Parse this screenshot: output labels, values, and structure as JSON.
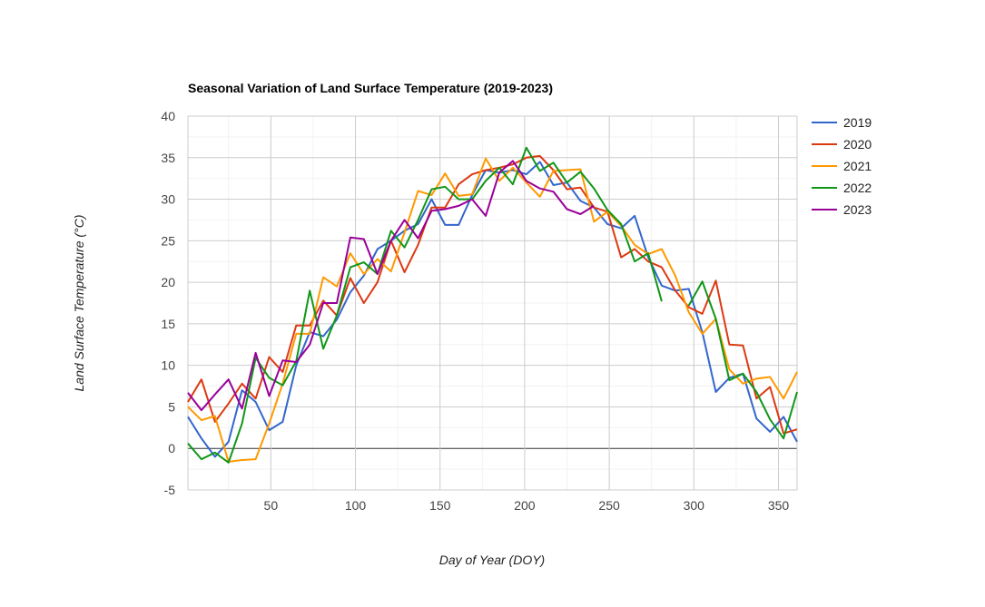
{
  "chart_data": {
    "type": "line",
    "title": "Seasonal Variation of Land Surface Temperature (2019-2023)",
    "xlabel": "Day of Year (DOY)",
    "ylabel": "Land Surface Temperature (°C)",
    "xlim": [
      1,
      361
    ],
    "ylim": [
      -5,
      40
    ],
    "x_ticks": [
      50,
      100,
      150,
      200,
      250,
      300,
      350
    ],
    "y_ticks": [
      -5,
      0,
      5,
      10,
      15,
      20,
      25,
      30,
      35,
      40
    ],
    "grid": true,
    "legend_position": "right",
    "series": [
      {
        "name": "2019",
        "color": "#3366cc",
        "x": [
          1,
          9,
          17,
          25,
          33,
          41,
          49,
          57,
          65,
          73,
          81,
          89,
          97,
          105,
          113,
          121,
          129,
          137,
          145,
          153,
          161,
          169,
          177,
          185,
          193,
          201,
          209,
          217,
          225,
          233,
          241,
          249,
          257,
          265,
          273,
          281,
          289,
          297,
          305,
          313,
          321,
          329,
          337,
          345,
          353,
          361
        ],
        "y": [
          3.8,
          1.2,
          -1.0,
          0.8,
          7.0,
          5.6,
          2.2,
          3.2,
          10.0,
          14.0,
          13.5,
          15.5,
          18.8,
          20.8,
          24.0,
          25.0,
          26.2,
          27.0,
          30.0,
          26.9,
          26.9,
          30.5,
          33.5,
          33.2,
          33.5,
          33.0,
          34.5,
          31.7,
          32.0,
          29.8,
          29.0,
          27.0,
          26.5,
          28.0,
          23.0,
          19.6,
          19.0,
          19.2,
          14.0,
          6.8,
          8.5,
          9.0,
          3.6,
          2.0,
          3.8,
          0.8
        ]
      },
      {
        "name": "2020",
        "color": "#dc3912",
        "x": [
          1,
          9,
          17,
          25,
          33,
          41,
          49,
          57,
          65,
          73,
          81,
          89,
          97,
          105,
          113,
          121,
          129,
          137,
          145,
          153,
          161,
          169,
          177,
          185,
          193,
          201,
          209,
          217,
          225,
          233,
          241,
          249,
          257,
          265,
          273,
          281,
          289,
          297,
          305,
          313,
          321,
          329,
          337,
          345,
          353,
          361
        ],
        "y": [
          5.6,
          8.3,
          3.2,
          5.4,
          7.8,
          6.0,
          11.0,
          9.2,
          14.8,
          14.8,
          17.8,
          16.0,
          20.5,
          17.5,
          20.0,
          25.0,
          21.2,
          24.5,
          29.0,
          29.0,
          31.8,
          33.0,
          33.5,
          33.8,
          34.2,
          35.0,
          35.2,
          33.5,
          31.2,
          31.4,
          29.0,
          28.5,
          23.0,
          24.0,
          22.5,
          21.8,
          19.0,
          17.0,
          16.2,
          20.2,
          12.5,
          12.4,
          6.0,
          7.4,
          1.8,
          2.3
        ]
      },
      {
        "name": "2021",
        "color": "#ff9900",
        "x": [
          1,
          9,
          17,
          25,
          33,
          41,
          49,
          57,
          65,
          73,
          81,
          89,
          97,
          105,
          113,
          121,
          129,
          137,
          145,
          153,
          161,
          169,
          177,
          185,
          193,
          201,
          209,
          217,
          225,
          233,
          241,
          249,
          257,
          265,
          273,
          281,
          289,
          297,
          305,
          313,
          321,
          329,
          337,
          345,
          353,
          361
        ],
        "y": [
          5.0,
          3.4,
          3.9,
          -1.6,
          -1.4,
          -1.3,
          3.0,
          7.8,
          13.8,
          13.8,
          20.6,
          19.5,
          23.5,
          21.0,
          22.8,
          21.3,
          26.0,
          31.0,
          30.5,
          33.1,
          30.4,
          30.6,
          34.9,
          32.2,
          33.8,
          32.0,
          30.3,
          33.4,
          33.5,
          33.6,
          27.3,
          28.5,
          26.8,
          24.5,
          23.4,
          24.0,
          20.8,
          16.4,
          13.8,
          15.6,
          9.5,
          7.8,
          8.4,
          8.6,
          6.0,
          9.2
        ]
      },
      {
        "name": "2022",
        "color": "#109618",
        "x": [
          1,
          9,
          17,
          25,
          33,
          41,
          49,
          57,
          65,
          73,
          81,
          89,
          97,
          105,
          113,
          121,
          129,
          137,
          145,
          153,
          161,
          169,
          177,
          185,
          193,
          201,
          209,
          217,
          225,
          233,
          241,
          249,
          257,
          265,
          273,
          281
        ],
        "y": [
          0.6,
          -1.3,
          -0.5,
          -1.7,
          3.0,
          10.9,
          8.5,
          7.6,
          10.5,
          19.0,
          12.0,
          16.0,
          21.8,
          22.4,
          21.0,
          26.2,
          24.2,
          27.5,
          31.2,
          31.5,
          30.0,
          30.0,
          32.2,
          33.8,
          31.8,
          36.2,
          33.4,
          34.4,
          32.0,
          33.3,
          31.3,
          28.7,
          27.0,
          22.5,
          23.5,
          17.7
        ]
      },
      {
        "name": "2022",
        "color": "#109618",
        "x": [
          297,
          305,
          313,
          321,
          329,
          337,
          345,
          353,
          361
        ],
        "y": [
          17.2,
          20.1,
          15.6,
          8.2,
          9.0,
          6.8,
          3.5,
          1.2,
          6.8
        ]
      },
      {
        "name": "2023",
        "color": "#990099",
        "x": [
          1,
          9,
          17,
          25,
          33,
          41,
          49,
          57,
          65,
          73,
          81,
          89,
          97,
          105,
          113,
          121,
          129,
          137,
          145,
          153,
          161,
          169,
          177,
          185,
          193,
          201,
          209,
          217,
          225,
          233,
          241
        ],
        "y": [
          6.7,
          4.6,
          6.5,
          8.3,
          4.8,
          11.5,
          6.3,
          10.6,
          10.4,
          12.5,
          17.5,
          17.5,
          25.4,
          25.2,
          21.0,
          25.0,
          27.5,
          25.3,
          28.6,
          28.8,
          29.2,
          30.0,
          28.0,
          33.2,
          34.6,
          32.2,
          31.3,
          30.9,
          28.8,
          28.2,
          29.2
        ]
      }
    ],
    "legend": [
      {
        "label": "2019",
        "color": "#3366cc"
      },
      {
        "label": "2020",
        "color": "#dc3912"
      },
      {
        "label": "2021",
        "color": "#ff9900"
      },
      {
        "label": "2022",
        "color": "#109618"
      },
      {
        "label": "2023",
        "color": "#990099"
      }
    ]
  }
}
